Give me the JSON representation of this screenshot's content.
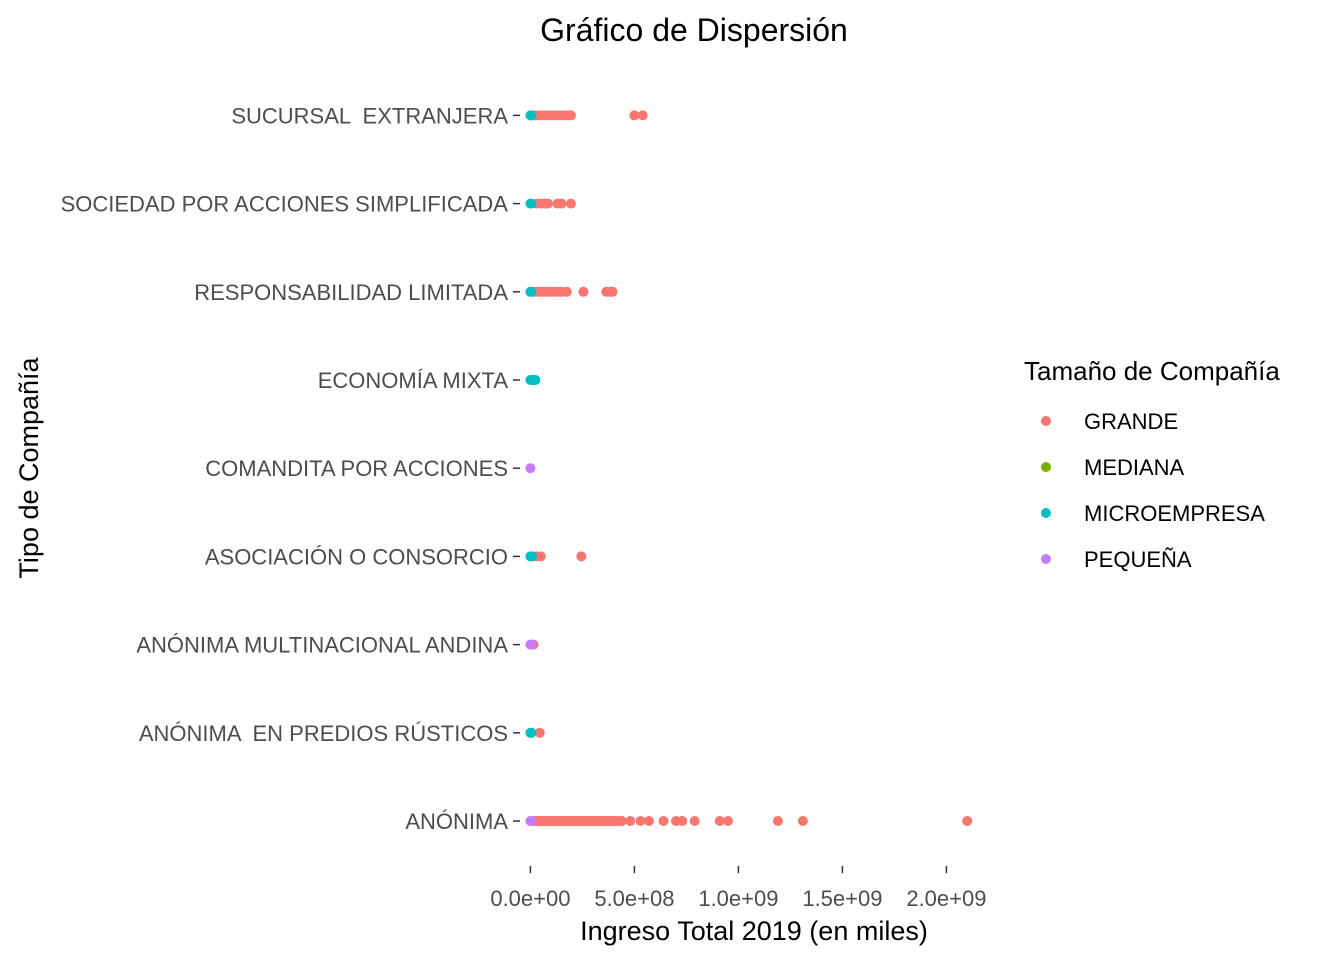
{
  "chart_data": {
    "type": "scatter",
    "title": "Gráfico de Dispersión",
    "xlabel": "Ingreso Total 2019 (en miles)",
    "ylabel": "Tipo de Compañía",
    "xlim": [
      -50000000,
      2200000000
    ],
    "x_ticks": [
      {
        "value": 0,
        "label": "0.0e+00"
      },
      {
        "value": 500000000,
        "label": "5.0e+08"
      },
      {
        "value": 1000000000,
        "label": "1.0e+09"
      },
      {
        "value": 1500000000,
        "label": "1.5e+09"
      },
      {
        "value": 2000000000,
        "label": "2.0e+09"
      }
    ],
    "categories": [
      "ANÓNIMA",
      "ANÓNIMA  EN PREDIOS RÚSTICOS",
      "ANÓNIMA MULTINACIONAL ANDINA",
      "ASOCIACIÓN O CONSORCIO",
      "COMANDITA POR ACCIONES",
      "ECONOMÍA MIXTA",
      "RESPONSABILIDAD LIMITADA",
      "SOCIEDAD POR ACCIONES SIMPLIFICADA",
      "SUCURSAL  EXTRANJERA"
    ],
    "grid": false,
    "legend": {
      "title": "Tamaño de Compañía",
      "position": "right"
    },
    "series": [
      {
        "name": "GRANDE",
        "color": "#F8766D",
        "points": [
          [
            "ANÓNIMA",
            10000000
          ],
          [
            "ANÓNIMA",
            20000000
          ],
          [
            "ANÓNIMA",
            30000000
          ],
          [
            "ANÓNIMA",
            40000000
          ],
          [
            "ANÓNIMA",
            50000000
          ],
          [
            "ANÓNIMA",
            60000000
          ],
          [
            "ANÓNIMA",
            70000000
          ],
          [
            "ANÓNIMA",
            80000000
          ],
          [
            "ANÓNIMA",
            90000000
          ],
          [
            "ANÓNIMA",
            100000000
          ],
          [
            "ANÓNIMA",
            110000000
          ],
          [
            "ANÓNIMA",
            120000000
          ],
          [
            "ANÓNIMA",
            130000000
          ],
          [
            "ANÓNIMA",
            140000000
          ],
          [
            "ANÓNIMA",
            150000000
          ],
          [
            "ANÓNIMA",
            160000000
          ],
          [
            "ANÓNIMA",
            170000000
          ],
          [
            "ANÓNIMA",
            180000000
          ],
          [
            "ANÓNIMA",
            190000000
          ],
          [
            "ANÓNIMA",
            200000000
          ],
          [
            "ANÓNIMA",
            210000000
          ],
          [
            "ANÓNIMA",
            220000000
          ],
          [
            "ANÓNIMA",
            230000000
          ],
          [
            "ANÓNIMA",
            240000000
          ],
          [
            "ANÓNIMA",
            250000000
          ],
          [
            "ANÓNIMA",
            260000000
          ],
          [
            "ANÓNIMA",
            270000000
          ],
          [
            "ANÓNIMA",
            280000000
          ],
          [
            "ANÓNIMA",
            290000000
          ],
          [
            "ANÓNIMA",
            300000000
          ],
          [
            "ANÓNIMA",
            310000000
          ],
          [
            "ANÓNIMA",
            320000000
          ],
          [
            "ANÓNIMA",
            330000000
          ],
          [
            "ANÓNIMA",
            340000000
          ],
          [
            "ANÓNIMA",
            350000000
          ],
          [
            "ANÓNIMA",
            360000000
          ],
          [
            "ANÓNIMA",
            370000000
          ],
          [
            "ANÓNIMA",
            380000000
          ],
          [
            "ANÓNIMA",
            390000000
          ],
          [
            "ANÓNIMA",
            400000000
          ],
          [
            "ANÓNIMA",
            410000000
          ],
          [
            "ANÓNIMA",
            420000000
          ],
          [
            "ANÓNIMA",
            430000000
          ],
          [
            "ANÓNIMA",
            440000000
          ],
          [
            "ANÓNIMA",
            480000000
          ],
          [
            "ANÓNIMA",
            530000000
          ],
          [
            "ANÓNIMA",
            570000000
          ],
          [
            "ANÓNIMA",
            640000000
          ],
          [
            "ANÓNIMA",
            700000000
          ],
          [
            "ANÓNIMA",
            730000000
          ],
          [
            "ANÓNIMA",
            790000000
          ],
          [
            "ANÓNIMA",
            910000000
          ],
          [
            "ANÓNIMA",
            950000000
          ],
          [
            "ANÓNIMA",
            1190000000
          ],
          [
            "ANÓNIMA",
            1310000000
          ],
          [
            "ANÓNIMA",
            2100000000
          ],
          [
            "ANÓNIMA  EN PREDIOS RÚSTICOS",
            45000000
          ],
          [
            "ANÓNIMA MULTINACIONAL ANDINA",
            15000000
          ],
          [
            "ASOCIACIÓN O CONSORCIO",
            30000000
          ],
          [
            "ASOCIACIÓN O CONSORCIO",
            50000000
          ],
          [
            "ASOCIACIÓN O CONSORCIO",
            245000000
          ],
          [
            "RESPONSABILIDAD LIMITADA",
            20000000
          ],
          [
            "RESPONSABILIDAD LIMITADA",
            35000000
          ],
          [
            "RESPONSABILIDAD LIMITADA",
            50000000
          ],
          [
            "RESPONSABILIDAD LIMITADA",
            65000000
          ],
          [
            "RESPONSABILIDAD LIMITADA",
            80000000
          ],
          [
            "RESPONSABILIDAD LIMITADA",
            95000000
          ],
          [
            "RESPONSABILIDAD LIMITADA",
            110000000
          ],
          [
            "RESPONSABILIDAD LIMITADA",
            130000000
          ],
          [
            "RESPONSABILIDAD LIMITADA",
            150000000
          ],
          [
            "RESPONSABILIDAD LIMITADA",
            175000000
          ],
          [
            "RESPONSABILIDAD LIMITADA",
            255000000
          ],
          [
            "RESPONSABILIDAD LIMITADA",
            365000000
          ],
          [
            "RESPONSABILIDAD LIMITADA",
            385000000
          ],
          [
            "RESPONSABILIDAD LIMITADA",
            395000000
          ],
          [
            "SOCIEDAD POR ACCIONES SIMPLIFICADA",
            30000000
          ],
          [
            "SOCIEDAD POR ACCIONES SIMPLIFICADA",
            50000000
          ],
          [
            "SOCIEDAD POR ACCIONES SIMPLIFICADA",
            70000000
          ],
          [
            "SOCIEDAD POR ACCIONES SIMPLIFICADA",
            85000000
          ],
          [
            "SOCIEDAD POR ACCIONES SIMPLIFICADA",
            130000000
          ],
          [
            "SOCIEDAD POR ACCIONES SIMPLIFICADA",
            150000000
          ],
          [
            "SOCIEDAD POR ACCIONES SIMPLIFICADA",
            195000000
          ],
          [
            "SUCURSAL  EXTRANJERA",
            20000000
          ],
          [
            "SUCURSAL  EXTRANJERA",
            40000000
          ],
          [
            "SUCURSAL  EXTRANJERA",
            60000000
          ],
          [
            "SUCURSAL  EXTRANJERA",
            80000000
          ],
          [
            "SUCURSAL  EXTRANJERA",
            100000000
          ],
          [
            "SUCURSAL  EXTRANJERA",
            120000000
          ],
          [
            "SUCURSAL  EXTRANJERA",
            140000000
          ],
          [
            "SUCURSAL  EXTRANJERA",
            160000000
          ],
          [
            "SUCURSAL  EXTRANJERA",
            180000000
          ],
          [
            "SUCURSAL  EXTRANJERA",
            195000000
          ],
          [
            "SUCURSAL  EXTRANJERA",
            500000000
          ],
          [
            "SUCURSAL  EXTRANJERA",
            540000000
          ]
        ]
      },
      {
        "name": "MEDIANA",
        "color": "#7CAE00",
        "points": []
      },
      {
        "name": "MICROEMPRESA",
        "color": "#00BFC4",
        "points": [
          [
            "ANÓNIMA  EN PREDIOS RÚSTICOS",
            0
          ],
          [
            "ANÓNIMA  EN PREDIOS RÚSTICOS",
            5000000
          ],
          [
            "ASOCIACIÓN O CONSORCIO",
            0
          ],
          [
            "ASOCIACIÓN O CONSORCIO",
            8000000
          ],
          [
            "ECONOMÍA MIXTA",
            0
          ],
          [
            "ECONOMÍA MIXTA",
            8000000
          ],
          [
            "ECONOMÍA MIXTA",
            16000000
          ],
          [
            "ECONOMÍA MIXTA",
            24000000
          ],
          [
            "RESPONSABILIDAD LIMITADA",
            0
          ],
          [
            "RESPONSABILIDAD LIMITADA",
            5000000
          ],
          [
            "SOCIEDAD POR ACCIONES SIMPLIFICADA",
            0
          ],
          [
            "SOCIEDAD POR ACCIONES SIMPLIFICADA",
            5000000
          ],
          [
            "SUCURSAL  EXTRANJERA",
            0
          ],
          [
            "SUCURSAL  EXTRANJERA",
            5000000
          ]
        ]
      },
      {
        "name": "PEQUEÑA",
        "color": "#C77CFF",
        "points": [
          [
            "ANÓNIMA",
            0
          ],
          [
            "ANÓNIMA",
            5000000
          ],
          [
            "ANÓNIMA MULTINACIONAL ANDINA",
            0
          ],
          [
            "ANÓNIMA MULTINACIONAL ANDINA",
            5000000
          ],
          [
            "COMANDITA POR ACCIONES",
            0
          ]
        ]
      }
    ]
  }
}
